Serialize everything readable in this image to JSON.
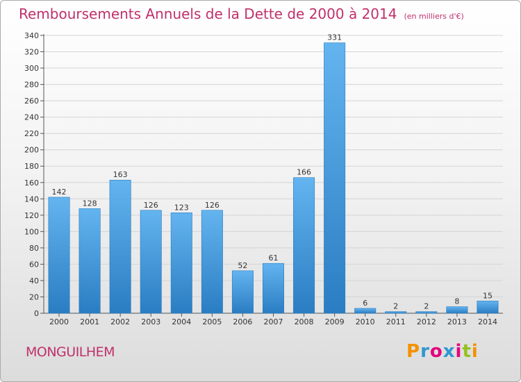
{
  "header": {
    "title": "Remboursements Annuels de la Dette de 2000 à 2014",
    "subtitle": "(en milliers d'€)"
  },
  "footer": {
    "commune": "MONGUILHEM",
    "logo_text": "Proxiti",
    "logo_colors": [
      "#f39200",
      "#2f97d3",
      "#e5007d",
      "#2f97d3",
      "#e5007d",
      "#95c11f",
      "#f39200"
    ]
  },
  "colors": {
    "bar_light": "#63b4ef",
    "bar_dark": "#2a7dc2",
    "title": "#c0306a",
    "grid": "#d4d4d4"
  },
  "chart_data": {
    "type": "bar",
    "title": "Remboursements Annuels de la Dette de 2000 à 2014",
    "subtitle": "(en milliers d'€)",
    "xlabel": "",
    "ylabel": "",
    "categories": [
      "2000",
      "2001",
      "2002",
      "2003",
      "2004",
      "2005",
      "2006",
      "2007",
      "2008",
      "2009",
      "2010",
      "2011",
      "2012",
      "2013",
      "2014"
    ],
    "values": [
      142,
      128,
      163,
      126,
      123,
      126,
      52,
      61,
      166,
      331,
      6,
      2,
      2,
      8,
      15
    ],
    "ylim": [
      0,
      340
    ],
    "yticks": [
      0,
      20,
      40,
      60,
      80,
      100,
      120,
      140,
      160,
      180,
      200,
      220,
      240,
      260,
      280,
      300,
      320,
      340
    ],
    "grid": true,
    "legend": "none"
  }
}
